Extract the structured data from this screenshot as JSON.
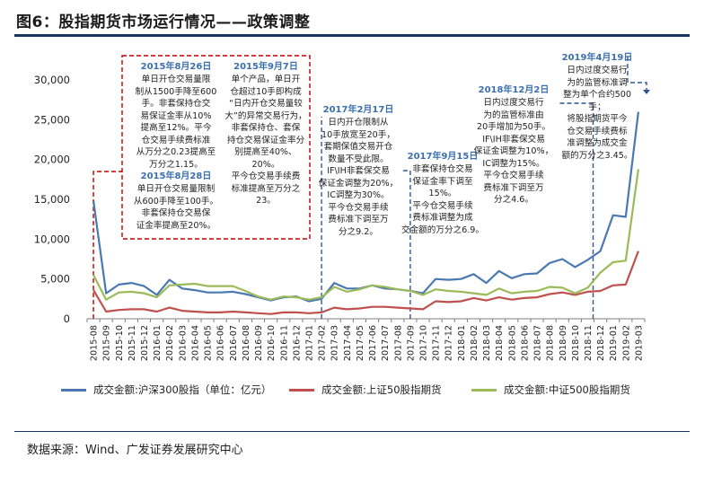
{
  "title": "图6：股指期货市场运行情况——政策调整",
  "source": "数据来源：Wind、广发证券发展研究中心",
  "chart_data": {
    "type": "line",
    "categories": [
      "2015-08",
      "2015-09",
      "2015-10",
      "2015-11",
      "2015-12",
      "2016-01",
      "2016-02",
      "2016-03",
      "2016-04",
      "2016-05",
      "2016-06",
      "2016-07",
      "2016-08",
      "2016-09",
      "2016-10",
      "2016-11",
      "2016-12",
      "2017-01",
      "2017-02",
      "2017-03",
      "2017-04",
      "2017-05",
      "2017-06",
      "2017-07",
      "2017-08",
      "2017-09",
      "2017-10",
      "2017-11",
      "2017-12",
      "2018-01",
      "2018-02",
      "2018-03",
      "2018-04",
      "2018-05",
      "2018-06",
      "2018-07",
      "2018-08",
      "2018-09",
      "2018-10",
      "2018-11",
      "2018-12",
      "2019-01",
      "2019-02",
      "2019-03"
    ],
    "ylim": [
      0,
      30000
    ],
    "yticks": [
      0,
      5000,
      10000,
      15000,
      20000,
      25000,
      30000
    ],
    "ytick_labels": [
      "0",
      "5,000",
      "10,000",
      "15,000",
      "20,000",
      "25,000",
      "30,000"
    ],
    "grid": false,
    "legend_position": "bottom",
    "series": [
      {
        "name": "成交金额:沪深300股指（单位：亿元）",
        "color": "#4a78b0",
        "values": [
          14800,
          3200,
          4300,
          4500,
          4100,
          3000,
          4900,
          3800,
          3600,
          3300,
          3300,
          3400,
          3100,
          2700,
          2300,
          2700,
          2800,
          2200,
          2500,
          4500,
          3800,
          3800,
          4200,
          3800,
          3700,
          3500,
          3200,
          5000,
          4900,
          5000,
          5600,
          4500,
          6000,
          5100,
          5600,
          5700,
          7000,
          7500,
          6500,
          7400,
          8500,
          13000,
          12800,
          26000
        ]
      },
      {
        "name": "成交金额:上证50股指期货",
        "color": "#c0504d",
        "values": [
          3600,
          900,
          1100,
          1200,
          1200,
          900,
          1400,
          1000,
          900,
          800,
          800,
          900,
          800,
          700,
          600,
          800,
          800,
          700,
          800,
          1400,
          1200,
          1300,
          1500,
          1500,
          1400,
          1300,
          1200,
          2200,
          2100,
          2200,
          2600,
          2300,
          2700,
          2400,
          2600,
          2700,
          3100,
          3300,
          3000,
          3400,
          3500,
          4200,
          4300,
          8500
        ]
      },
      {
        "name": "成交金额:中证500股指期货",
        "color": "#9bbb59",
        "values": [
          5500,
          2400,
          3300,
          3400,
          3200,
          2700,
          4200,
          4300,
          4400,
          4100,
          4100,
          4100,
          3500,
          2800,
          2400,
          2800,
          2700,
          2400,
          2700,
          4000,
          3400,
          3700,
          4200,
          4000,
          3700,
          3500,
          3000,
          3700,
          3500,
          3400,
          3200,
          3000,
          3800,
          3200,
          3400,
          3500,
          4000,
          3900,
          3200,
          3900,
          5800,
          7100,
          7300,
          18800
        ]
      }
    ]
  },
  "annotations": [
    {
      "date": "2015年8月26日",
      "lines": [
        "单日开仓交易量限",
        "制从1500手降至600",
        "手。非套保持仓交",
        "易保证金率从10%",
        "提高至12%。平今",
        "仓交易手续费标准",
        "从万分之0.23提高至",
        "万分之1.15。"
      ]
    },
    {
      "date": "2015年8月28日",
      "lines": [
        "单日开仓交易量限制",
        "从600手降至100手。",
        "非套保持仓交易保",
        "证金率提高至20%。"
      ]
    },
    {
      "date": "2015年9月7日",
      "lines": [
        "单个产品，单日开",
        "仓超过10手即构成",
        "“日内开仓交易量较",
        "大”的异常交易行为，",
        "非套保持仓、套保",
        "持仓交易保证金率分",
        "别提高至40%、20%。",
        "平今仓交易手续费",
        "标准提高至万分之23。"
      ]
    },
    {
      "date": "2017年2月17日",
      "lines": [
        "日内开仓限制从",
        "10手放宽至20手，",
        "套期保值交易开仓",
        "数量不受此限。",
        "IF\\IH非套保交易",
        "保证金调整为20%，",
        "IC调整为30%。",
        "平今仓交易手续",
        "费标准下调至万",
        "分之9.2。"
      ]
    },
    {
      "date": "2017年9月15日",
      "lines": [
        "非套保持仓交易",
        "保证金率下调至15%。",
        "平今仓交易手续",
        "费标准调整为成",
        "交金额的万分之6.9。"
      ]
    },
    {
      "date": "2018年12月2日",
      "lines": [
        "日内过度交易行",
        "为的监管标准由",
        "20手增加为50手。",
        "IF\\IH非套保交易",
        "保证金调整为10%，",
        "IC调整为15%。",
        "平今仓交易手续",
        "费标准下调至万",
        "分之4.6。"
      ]
    },
    {
      "date": "2019年4月19日",
      "lines": [
        "日内过度交易行",
        "为的监管标准调",
        "整为单个合约500手；",
        "将股指期货平今",
        "仓交易手续费标",
        "准调整为成交金",
        "额的万分之3.45。"
      ]
    }
  ]
}
